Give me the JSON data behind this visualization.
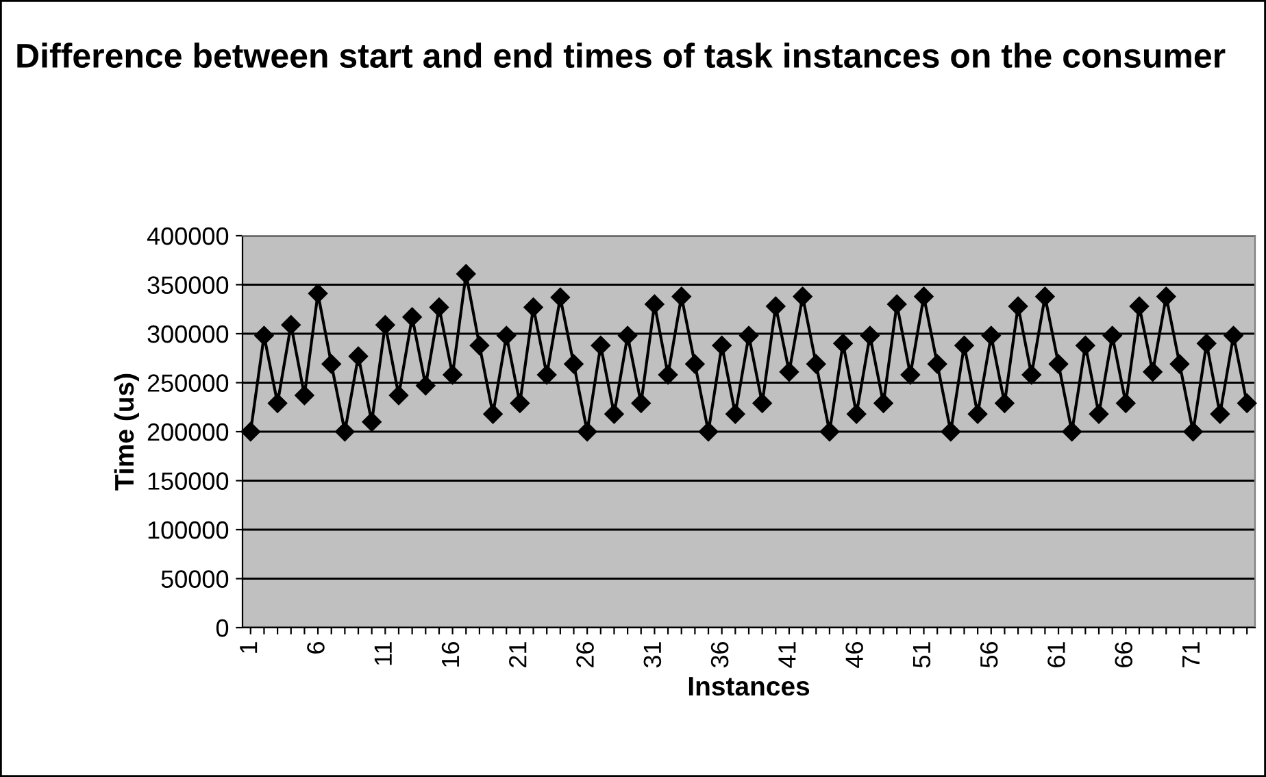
{
  "chart_data": {
    "type": "line",
    "title": "Difference between start and end times of task instances on the consumer",
    "xlabel": "Instances",
    "ylabel": "Time (us)",
    "categories": [
      "1",
      null,
      null,
      null,
      null,
      "6",
      null,
      null,
      null,
      null,
      "11",
      null,
      null,
      null,
      null,
      "16",
      null,
      null,
      null,
      null,
      "21",
      null,
      null,
      null,
      null,
      "26",
      null,
      null,
      null,
      null,
      "31",
      null,
      null,
      null,
      null,
      "36",
      null,
      null,
      null,
      null,
      "41",
      null,
      null,
      null,
      null,
      "46",
      null,
      null,
      null,
      null,
      "51",
      null,
      null,
      null,
      null,
      "56",
      null,
      null,
      null,
      null,
      "61",
      null,
      null,
      null,
      null,
      "66",
      null,
      null,
      null,
      null,
      "71",
      null,
      null,
      null,
      null
    ],
    "series": [
      {
        "color": "#000000",
        "values": [
          200000,
          298000,
          229000,
          309000,
          237000,
          341000,
          269000,
          200000,
          277000,
          210000,
          309000,
          237000,
          317000,
          247000,
          327000,
          258000,
          361000,
          288000,
          218000,
          298000,
          229000,
          327000,
          258000,
          337000,
          269000,
          200000,
          288000,
          218000,
          298000,
          229000,
          330000,
          258000,
          338000,
          269000,
          200000,
          288000,
          218000,
          298000,
          229000,
          328000,
          261000,
          338000,
          269000,
          200000,
          290000,
          218000,
          298000,
          229000,
          330000,
          258000,
          338000,
          269000,
          200000,
          288000,
          218000,
          298000,
          229000,
          328000,
          258000,
          338000,
          269000,
          200000,
          288000,
          218000,
          298000,
          229000,
          328000,
          261000,
          338000,
          269000,
          200000,
          290000,
          218000,
          298000,
          229000
        ]
      }
    ],
    "ylim": [
      0,
      400000
    ],
    "yticks": [
      0,
      50000,
      100000,
      150000,
      200000,
      250000,
      300000,
      350000,
      400000
    ],
    "grid": "y",
    "legend": false,
    "marker": "diamond",
    "line_style": "solid"
  }
}
